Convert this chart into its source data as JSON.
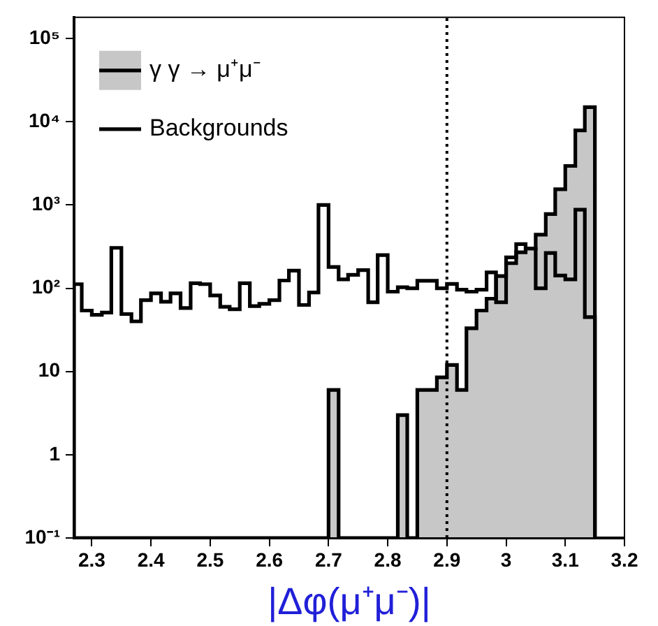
{
  "chart_data": {
    "type": "histogram",
    "xlabel": "|Δφ(μ⁺μ⁻)|",
    "bins": [
      2.27,
      2.283,
      2.3,
      2.317,
      2.333,
      2.35,
      2.367,
      2.383,
      2.4,
      2.417,
      2.433,
      2.45,
      2.467,
      2.483,
      2.5,
      2.517,
      2.533,
      2.55,
      2.567,
      2.583,
      2.6,
      2.617,
      2.633,
      2.65,
      2.667,
      2.683,
      2.7,
      2.717,
      2.733,
      2.75,
      2.767,
      2.783,
      2.8,
      2.817,
      2.833,
      2.85,
      2.867,
      2.883,
      2.9,
      2.917,
      2.933,
      2.95,
      2.967,
      2.983,
      3,
      3.017,
      3.033,
      3.05,
      3.067,
      3.083,
      3.1,
      3.117,
      3.133,
      3.15
    ],
    "series": [
      {
        "name": "γ γ → μ⁺μ⁻",
        "color": "#c7c7c7",
        "values": [
          null,
          null,
          null,
          null,
          null,
          null,
          null,
          null,
          null,
          null,
          null,
          null,
          null,
          null,
          null,
          null,
          null,
          null,
          null,
          null,
          null,
          null,
          null,
          null,
          null,
          null,
          6,
          null,
          null,
          null,
          null,
          null,
          null,
          3,
          null,
          6,
          6,
          8.5,
          12,
          6,
          33,
          54,
          75,
          140,
          200,
          270,
          300,
          440,
          780,
          1550,
          2950,
          7900,
          15000
        ]
      },
      {
        "name": "Backgrounds",
        "color": "#000000",
        "values": [
          112,
          54,
          48,
          51,
          306,
          49,
          40,
          72,
          87,
          69,
          87,
          58,
          115,
          112,
          82,
          60,
          56,
          115,
          61,
          65,
          72,
          124,
          163,
          63,
          89,
          1000,
          180,
          128,
          145,
          165,
          68,
          250,
          91,
          103,
          100,
          123,
          123,
          100,
          113,
          96,
          91,
          96,
          155,
          68,
          235,
          340,
          300,
          100,
          265,
          142,
          128,
          880,
          45
        ]
      }
    ],
    "xlim": [
      2.27,
      3.2
    ],
    "xticks": [
      2.3,
      2.4,
      2.5,
      2.6,
      2.7,
      2.8,
      2.9,
      3,
      3.1,
      3.2
    ],
    "ylim": [
      0.1,
      180000
    ],
    "yticks": [
      {
        "value": 0.1,
        "label": "10⁻¹"
      },
      1,
      10,
      {
        "value": 100,
        "label": "10²"
      },
      {
        "value": 1000,
        "label": "10³"
      },
      {
        "value": 10000,
        "label": "10⁴"
      },
      {
        "value": 100000,
        "label": "10⁵"
      }
    ],
    "log": "y",
    "grid": false,
    "legend": "top left",
    "ref_lines": [
      {
        "axis": "x",
        "value": 2.9,
        "line_style": "dotted"
      }
    ]
  }
}
